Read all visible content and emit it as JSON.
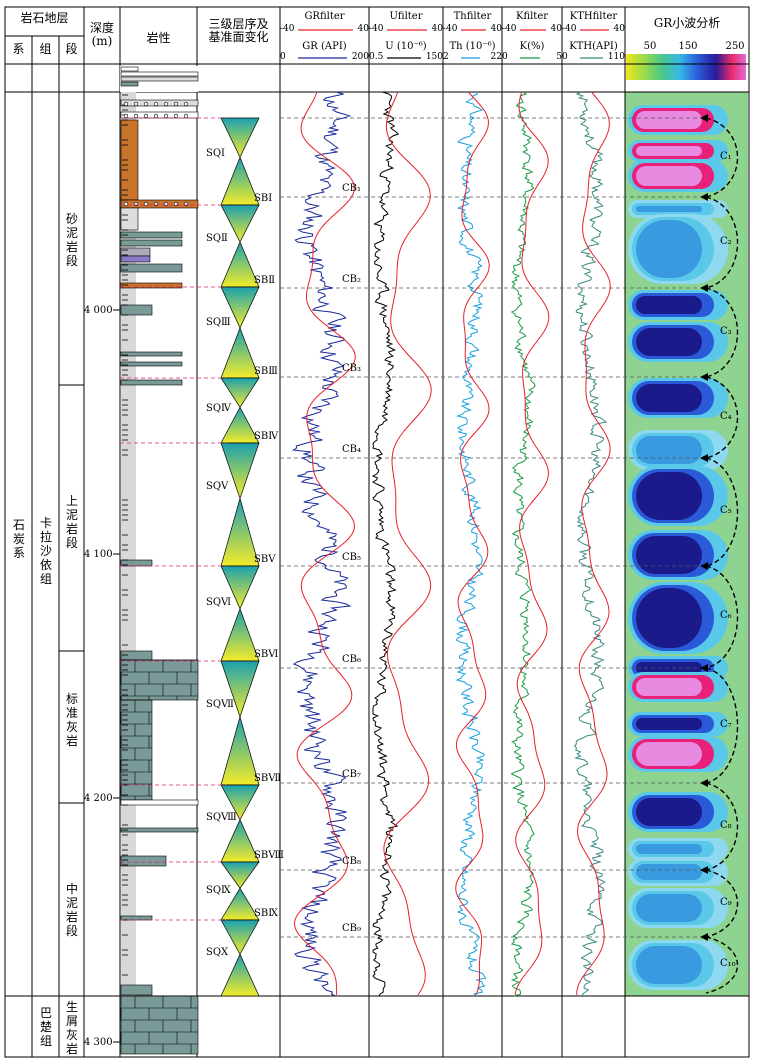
{
  "header": {
    "strata_group": "岩石地层",
    "col_system": "系",
    "col_formation": "组",
    "col_member": "段",
    "col_depth": "深度\n(m)",
    "col_lith": "岩性",
    "col_seq": "三级层序及\n基准面变化",
    "wavelet_title": "GR小波分析",
    "wavelet_ticks": [
      "50",
      "150",
      "250"
    ]
  },
  "tracks": [
    {
      "filter": "GRfilter",
      "filter_range": [
        "-40",
        "40"
      ],
      "curve": "GR (API)",
      "curve_range": [
        "0",
        "200"
      ]
    },
    {
      "filter": "Ufilter",
      "filter_range": [
        "-40",
        "40"
      ],
      "curve": "U (10⁻⁶)",
      "curve_range": [
        "0.5",
        "150"
      ]
    },
    {
      "filter": "Thfilter",
      "filter_range": [
        "-40",
        "40"
      ],
      "curve": "Th (10⁻⁶)",
      "curve_range": [
        "2",
        "22"
      ]
    },
    {
      "filter": "Kfilter",
      "filter_range": [
        "-40",
        "40"
      ],
      "curve": "K(%)",
      "curve_range": [
        "0",
        "5"
      ]
    },
    {
      "filter": "KTHfilter",
      "filter_range": [
        "-40",
        "40"
      ],
      "curve": "KTH(API)",
      "curve_range": [
        "0",
        "110"
      ]
    }
  ],
  "strat": {
    "system": "石炭系",
    "formation_upper": "卡拉沙依组",
    "formation_lower": "巴楚组",
    "members": [
      "砂泥岩段",
      "上泥岩段",
      "标准灰岩",
      "中泥岩段",
      "生屑灰岩"
    ]
  },
  "depth_ticks": [
    "4 000",
    "4 100",
    "4 200",
    "4 300"
  ],
  "sequences": [
    "SQⅠ",
    "SQⅡ",
    "SQⅢ",
    "SQⅣ",
    "SQⅤ",
    "SQⅥ",
    "SQⅦ",
    "SQⅧ",
    "SQⅨ",
    "SQⅩ"
  ],
  "boundaries": [
    "SBⅠ",
    "SBⅡ",
    "SBⅢ",
    "SBⅣ",
    "SBⅤ",
    "SBⅥ",
    "SBⅦ",
    "SBⅧ",
    "SBⅨ"
  ],
  "cycle_boundaries": [
    "CB₁",
    "CB₂",
    "CB₃",
    "CB₄",
    "CB₅",
    "CB₆",
    "CB₇",
    "CB₈",
    "CB₉"
  ],
  "cycles": [
    "C₁",
    "C₂",
    "C₃",
    "C₄",
    "C₅",
    "C₆",
    "C₇",
    "C₈",
    "C₉",
    "C₁₀"
  ],
  "colors": {
    "red": "#e8202a",
    "blue": "#1a2a9a",
    "cyan": "#1aa0e0",
    "green": "#1a9a4a",
    "teal": "#3a8a80",
    "grey_lith": "#7a9a98",
    "orange_lith": "#c8742a"
  }
}
